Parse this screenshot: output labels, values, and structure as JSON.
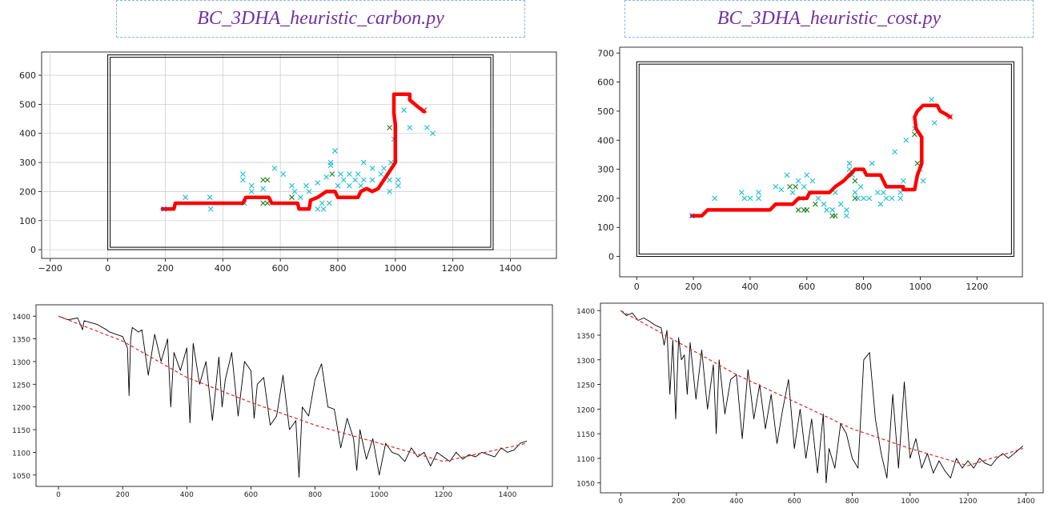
{
  "titles": {
    "left": "BC_3DHA_heuristic_carbon.py",
    "right": "BC_3DHA_heuristic_cost.py"
  },
  "colors": {
    "path": "#ff0000",
    "obstacle_cyan": "#17becf",
    "obstacle_green": "#1a7f1a",
    "start_marker": "#7030a0",
    "profile_line": "#000000",
    "trend_line": "#d62728",
    "grid": "#cfcfcf",
    "title_text": "#7030a0",
    "title_border": "#8ab6d6"
  },
  "chart_data": [
    {
      "type": "scatter",
      "panel": "top-left",
      "xlim": [
        -230,
        1560
      ],
      "ylim": [
        -30,
        680
      ],
      "x_ticks": [
        -200,
        0,
        200,
        400,
        600,
        800,
        1000,
        1200,
        1400
      ],
      "y_ticks": [
        0,
        100,
        200,
        300,
        400,
        500,
        600
      ],
      "grid": true,
      "boundary": {
        "x": [
          0,
          1340
        ],
        "y": [
          0,
          670
        ]
      },
      "path": [
        [
          190,
          140
        ],
        [
          230,
          140
        ],
        [
          235,
          160
        ],
        [
          470,
          160
        ],
        [
          480,
          180
        ],
        [
          560,
          180
        ],
        [
          570,
          160
        ],
        [
          660,
          160
        ],
        [
          665,
          140
        ],
        [
          700,
          140
        ],
        [
          705,
          170
        ],
        [
          730,
          180
        ],
        [
          760,
          200
        ],
        [
          790,
          200
        ],
        [
          800,
          180
        ],
        [
          870,
          180
        ],
        [
          880,
          200
        ],
        [
          900,
          210
        ],
        [
          920,
          200
        ],
        [
          940,
          210
        ],
        [
          960,
          240
        ],
        [
          980,
          270
        ],
        [
          1000,
          300
        ],
        [
          1000,
          430
        ],
        [
          995,
          470
        ],
        [
          995,
          535
        ],
        [
          1050,
          535
        ],
        [
          1050,
          515
        ],
        [
          1080,
          490
        ],
        [
          1100,
          475
        ]
      ],
      "obstacles_cyan": [
        [
          270,
          180
        ],
        [
          355,
          180
        ],
        [
          358,
          140
        ],
        [
          470,
          260
        ],
        [
          470,
          240
        ],
        [
          475,
          160
        ],
        [
          500,
          220
        ],
        [
          500,
          200
        ],
        [
          540,
          210
        ],
        [
          580,
          280
        ],
        [
          610,
          260
        ],
        [
          640,
          220
        ],
        [
          650,
          200
        ],
        [
          670,
          180
        ],
        [
          690,
          220
        ],
        [
          700,
          200
        ],
        [
          730,
          140
        ],
        [
          730,
          230
        ],
        [
          745,
          160
        ],
        [
          750,
          140
        ],
        [
          760,
          250
        ],
        [
          770,
          160
        ],
        [
          775,
          300
        ],
        [
          775,
          290
        ],
        [
          790,
          340
        ],
        [
          800,
          220
        ],
        [
          810,
          260
        ],
        [
          820,
          240
        ],
        [
          840,
          220
        ],
        [
          840,
          260
        ],
        [
          860,
          240
        ],
        [
          870,
          260
        ],
        [
          880,
          220
        ],
        [
          890,
          300
        ],
        [
          890,
          240
        ],
        [
          920,
          280
        ],
        [
          920,
          240
        ],
        [
          950,
          260
        ],
        [
          960,
          280
        ],
        [
          980,
          240
        ],
        [
          980,
          200
        ],
        [
          985,
          300
        ],
        [
          995,
          380
        ],
        [
          1010,
          240
        ],
        [
          1010,
          220
        ],
        [
          1030,
          480
        ],
        [
          1050,
          420
        ],
        [
          1110,
          420
        ],
        [
          1130,
          400
        ]
      ],
      "obstacles_green": [
        [
          540,
          240
        ],
        [
          555,
          240
        ],
        [
          540,
          160
        ],
        [
          555,
          160
        ],
        [
          640,
          180
        ],
        [
          780,
          260
        ],
        [
          980,
          420
        ]
      ],
      "start": [
        195,
        140
      ],
      "goal": [
        1100,
        480
      ]
    },
    {
      "type": "scatter",
      "panel": "top-right",
      "xlim": [
        -60,
        1360
      ],
      "ylim": [
        -70,
        720
      ],
      "x_ticks": [
        0,
        200,
        400,
        600,
        800,
        1000,
        1200
      ],
      "y_ticks": [
        0,
        100,
        200,
        300,
        400,
        500,
        600,
        700
      ],
      "grid": false,
      "boundary": {
        "x": [
          0,
          1330
        ],
        "y": [
          0,
          670
        ]
      },
      "path": [
        [
          195,
          140
        ],
        [
          230,
          140
        ],
        [
          250,
          160
        ],
        [
          470,
          160
        ],
        [
          490,
          180
        ],
        [
          550,
          180
        ],
        [
          570,
          200
        ],
        [
          600,
          200
        ],
        [
          610,
          220
        ],
        [
          680,
          220
        ],
        [
          700,
          240
        ],
        [
          730,
          260
        ],
        [
          750,
          280
        ],
        [
          770,
          300
        ],
        [
          800,
          300
        ],
        [
          810,
          280
        ],
        [
          860,
          280
        ],
        [
          870,
          260
        ],
        [
          880,
          240
        ],
        [
          940,
          240
        ],
        [
          940,
          230
        ],
        [
          980,
          230
        ],
        [
          990,
          280
        ],
        [
          1005,
          320
        ],
        [
          1005,
          410
        ],
        [
          985,
          440
        ],
        [
          980,
          480
        ],
        [
          990,
          500
        ],
        [
          1010,
          520
        ],
        [
          1060,
          520
        ],
        [
          1070,
          500
        ],
        [
          1090,
          490
        ],
        [
          1105,
          480
        ]
      ],
      "obstacles_cyan": [
        [
          275,
          200
        ],
        [
          370,
          220
        ],
        [
          380,
          200
        ],
        [
          400,
          200
        ],
        [
          430,
          220
        ],
        [
          430,
          200
        ],
        [
          490,
          240
        ],
        [
          510,
          230
        ],
        [
          530,
          280
        ],
        [
          550,
          220
        ],
        [
          570,
          260
        ],
        [
          580,
          200
        ],
        [
          590,
          240
        ],
        [
          600,
          280
        ],
        [
          610,
          220
        ],
        [
          620,
          260
        ],
        [
          640,
          200
        ],
        [
          660,
          180
        ],
        [
          670,
          160
        ],
        [
          690,
          160
        ],
        [
          700,
          220
        ],
        [
          720,
          180
        ],
        [
          740,
          140
        ],
        [
          740,
          160
        ],
        [
          750,
          300
        ],
        [
          750,
          320
        ],
        [
          760,
          280
        ],
        [
          770,
          220
        ],
        [
          780,
          200
        ],
        [
          790,
          240
        ],
        [
          800,
          200
        ],
        [
          820,
          200
        ],
        [
          830,
          320
        ],
        [
          850,
          220
        ],
        [
          860,
          180
        ],
        [
          870,
          220
        ],
        [
          880,
          200
        ],
        [
          900,
          200
        ],
        [
          910,
          360
        ],
        [
          930,
          200
        ],
        [
          930,
          220
        ],
        [
          940,
          260
        ],
        [
          950,
          400
        ],
        [
          980,
          440
        ],
        [
          1000,
          300
        ],
        [
          1010,
          260
        ],
        [
          1040,
          540
        ],
        [
          1050,
          460
        ]
      ],
      "obstacles_green": [
        [
          540,
          240
        ],
        [
          560,
          240
        ],
        [
          570,
          160
        ],
        [
          590,
          160
        ],
        [
          600,
          160
        ],
        [
          630,
          180
        ],
        [
          690,
          140
        ],
        [
          700,
          140
        ],
        [
          770,
          260
        ],
        [
          770,
          200
        ],
        [
          980,
          420
        ],
        [
          990,
          320
        ]
      ],
      "start": [
        195,
        140
      ],
      "goal": [
        1105,
        480
      ]
    },
    {
      "type": "line",
      "panel": "bottom-left",
      "xlim": [
        -70,
        1540
      ],
      "ylim": [
        1025,
        1425
      ],
      "x_ticks": [
        0,
        200,
        400,
        600,
        800,
        1000,
        1200,
        1400
      ],
      "y_ticks": [
        1050,
        1100,
        1150,
        1200,
        1250,
        1300,
        1350,
        1400
      ],
      "grid": false,
      "series": [
        {
          "style": "solid",
          "x": [
            0,
            30,
            60,
            75,
            80,
            120,
            150,
            160,
            180,
            200,
            215,
            220,
            225,
            230,
            240,
            250,
            260,
            280,
            300,
            320,
            340,
            350,
            360,
            380,
            400,
            410,
            420,
            440,
            460,
            480,
            500,
            510,
            520,
            540,
            560,
            580,
            600,
            610,
            620,
            640,
            660,
            680,
            700,
            720,
            740,
            750,
            760,
            780,
            800,
            820,
            840,
            860,
            880,
            900,
            920,
            930,
            940,
            960,
            980,
            1000,
            1020,
            1040,
            1060,
            1080,
            1100,
            1120,
            1140,
            1160,
            1180,
            1200,
            1220,
            1240,
            1260,
            1280,
            1300,
            1320,
            1340,
            1360,
            1380,
            1400,
            1420,
            1440,
            1460
          ],
          "y": [
            1400,
            1392,
            1396,
            1370,
            1390,
            1382,
            1370,
            1365,
            1360,
            1355,
            1330,
            1225,
            1350,
            1375,
            1370,
            1365,
            1370,
            1270,
            1360,
            1300,
            1350,
            1200,
            1320,
            1280,
            1330,
            1165,
            1340,
            1250,
            1300,
            1170,
            1310,
            1200,
            1260,
            1320,
            1180,
            1300,
            1280,
            1175,
            1250,
            1265,
            1160,
            1180,
            1270,
            1150,
            1170,
            1045,
            1200,
            1180,
            1260,
            1295,
            1200,
            1195,
            1110,
            1175,
            1130,
            1060,
            1150,
            1085,
            1130,
            1050,
            1120,
            1100,
            1095,
            1080,
            1110,
            1090,
            1100,
            1070,
            1100,
            1090,
            1080,
            1100,
            1085,
            1095,
            1090,
            1100,
            1095,
            1090,
            1110,
            1100,
            1105,
            1120,
            1125
          ]
        },
        {
          "style": "dashed",
          "x": [
            0,
            200,
            400,
            600,
            800,
            1000,
            1200,
            1460
          ],
          "y": [
            1400,
            1345,
            1265,
            1210,
            1160,
            1120,
            1080,
            1120
          ]
        }
      ]
    },
    {
      "type": "line",
      "panel": "bottom-right",
      "xlim": [
        -70,
        1460
      ],
      "ylim": [
        1030,
        1415
      ],
      "x_ticks": [
        0,
        200,
        400,
        600,
        800,
        1000,
        1200,
        1400
      ],
      "y_ticks": [
        1050,
        1100,
        1150,
        1200,
        1250,
        1300,
        1350,
        1400
      ],
      "grid": false,
      "series": [
        {
          "style": "solid",
          "x": [
            0,
            20,
            40,
            60,
            80,
            100,
            120,
            140,
            150,
            160,
            170,
            180,
            190,
            200,
            210,
            220,
            230,
            240,
            260,
            280,
            300,
            320,
            330,
            340,
            360,
            380,
            400,
            420,
            440,
            460,
            480,
            500,
            520,
            540,
            560,
            580,
            600,
            620,
            640,
            660,
            680,
            700,
            710,
            720,
            740,
            760,
            780,
            800,
            820,
            840,
            860,
            880,
            900,
            920,
            940,
            960,
            980,
            1000,
            1020,
            1040,
            1060,
            1080,
            1100,
            1120,
            1140,
            1160,
            1180,
            1200,
            1220,
            1240,
            1260,
            1280,
            1300,
            1320,
            1340,
            1360,
            1390
          ],
          "y": [
            1400,
            1390,
            1395,
            1380,
            1385,
            1378,
            1370,
            1365,
            1330,
            1360,
            1230,
            1340,
            1180,
            1345,
            1300,
            1310,
            1230,
            1335,
            1220,
            1320,
            1200,
            1290,
            1150,
            1300,
            1190,
            1260,
            1270,
            1140,
            1280,
            1180,
            1250,
            1160,
            1230,
            1130,
            1200,
            1260,
            1120,
            1200,
            1100,
            1180,
            1070,
            1190,
            1050,
            1120,
            1080,
            1170,
            1150,
            1100,
            1080,
            1300,
            1315,
            1180,
            1110,
            1060,
            1230,
            1080,
            1255,
            1100,
            1140,
            1080,
            1110,
            1070,
            1095,
            1075,
            1060,
            1100,
            1080,
            1095,
            1080,
            1100,
            1090,
            1085,
            1100,
            1110,
            1100,
            1110,
            1125
          ]
        },
        {
          "style": "dashed",
          "x": [
            0,
            200,
            400,
            600,
            800,
            1000,
            1200,
            1390
          ],
          "y": [
            1400,
            1335,
            1270,
            1215,
            1160,
            1120,
            1085,
            1120
          ]
        }
      ]
    }
  ]
}
